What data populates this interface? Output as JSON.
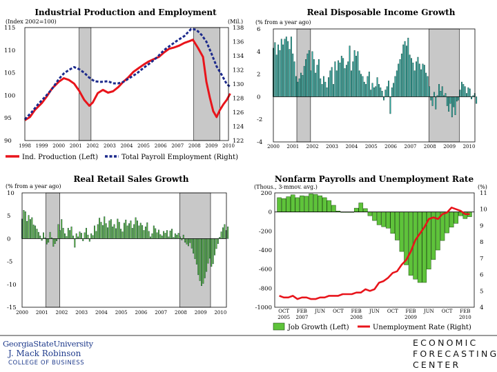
{
  "chart_data": [
    {
      "type": "line",
      "title": "Industrial Production and Employment",
      "ylabel_left": "(Index 2002=100)",
      "ylabel_right": "(Mil.)",
      "yticks_left": [
        "115",
        "110",
        "105",
        "100",
        "95",
        "90"
      ],
      "yticks_right": [
        "138",
        "136",
        "134",
        "132",
        "130",
        "128",
        "126",
        "124",
        "122"
      ],
      "ylim_left": [
        90,
        115
      ],
      "ylim_right": [
        122,
        138
      ],
      "xticks": [
        "1998",
        "1999",
        "2000",
        "2001",
        "2002",
        "2003",
        "2004",
        "2005",
        "2006",
        "2007",
        "2008",
        "2009",
        "2010"
      ],
      "xlim": [
        1998,
        2010
      ],
      "recessions": [
        [
          2001.2,
          2001.9
        ],
        [
          2007.95,
          2009.5
        ]
      ],
      "legend": [
        "Ind. Production (Left)",
        "Total Payroll Employment (Right)"
      ],
      "series": [
        {
          "name": "Ind. Production (Left)",
          "axis": "left",
          "color": "#e8141b",
          "x": [
            1998.0,
            1998.3,
            1998.6,
            1999.0,
            1999.3,
            1999.6,
            2000.0,
            2000.3,
            2000.6,
            2000.9,
            2001.2,
            2001.5,
            2001.8,
            2002.0,
            2002.3,
            2002.6,
            2002.9,
            2003.2,
            2003.5,
            2003.8,
            2004.1,
            2004.4,
            2004.7,
            2005.0,
            2005.3,
            2005.6,
            2005.9,
            2006.2,
            2006.5,
            2006.8,
            2007.1,
            2007.4,
            2007.7,
            2007.9,
            2008.2,
            2008.5,
            2008.7,
            2008.9,
            2009.1,
            2009.3,
            2009.5,
            2009.7,
            2009.9,
            2010.1
          ],
          "y": [
            94.5,
            95.2,
            96.8,
            98.3,
            99.8,
            101.5,
            103.0,
            103.8,
            103.4,
            102.6,
            101.0,
            99.0,
            97.7,
            98.4,
            100.5,
            101.2,
            100.6,
            100.9,
            101.8,
            103.0,
            104.0,
            105.2,
            106.0,
            106.8,
            107.5,
            108.0,
            108.5,
            109.5,
            110.3,
            110.6,
            111.0,
            111.6,
            112.0,
            112.3,
            110.5,
            108.5,
            103.0,
            99.5,
            96.5,
            95.2,
            96.8,
            98.0,
            99.0,
            100.4
          ]
        },
        {
          "name": "Total Payroll Employment (Right)",
          "axis": "right",
          "color": "#1c2a8c",
          "x": [
            1998.0,
            1998.4,
            1998.8,
            1999.2,
            1999.6,
            2000.0,
            2000.3,
            2000.6,
            2000.9,
            2001.2,
            2001.5,
            2001.8,
            2002.1,
            2002.5,
            2002.9,
            2003.2,
            2003.5,
            2003.8,
            2004.2,
            2004.6,
            2005.0,
            2005.4,
            2005.8,
            2006.2,
            2006.6,
            2007.0,
            2007.4,
            2007.8,
            2008.1,
            2008.4,
            2008.7,
            2009.0,
            2009.3,
            2009.6,
            2009.9,
            2010.1
          ],
          "y": [
            125.0,
            126.0,
            127.2,
            128.2,
            129.3,
            130.7,
            131.5,
            132.0,
            132.4,
            132.1,
            131.6,
            130.9,
            130.4,
            130.3,
            130.4,
            130.1,
            130.1,
            130.3,
            130.9,
            131.5,
            132.3,
            133.0,
            133.8,
            134.8,
            135.5,
            136.2,
            136.8,
            137.8,
            137.7,
            137.0,
            136.0,
            134.3,
            132.5,
            131.3,
            130.0,
            129.6
          ]
        }
      ]
    },
    {
      "type": "bar",
      "title": "Real Disposable Income Growth",
      "ylabel": "(% from a year ago)",
      "yticks": [
        "6",
        "4",
        "2",
        "0",
        "-2",
        "-4"
      ],
      "ylim": [
        -4,
        6
      ],
      "xticks": [
        "2000",
        "2001",
        "2002",
        "2003",
        "2004",
        "2005",
        "2006",
        "2007",
        "2008",
        "2009",
        "2010"
      ],
      "xlim": [
        2000,
        2010.3
      ],
      "recessions": [
        [
          2001.2,
          2001.9
        ],
        [
          2007.95,
          2009.5
        ]
      ],
      "series": [
        {
          "name": "Real Disposable Income Growth",
          "color": "#2fb4aa",
          "start": 2000.0,
          "step": 0.083,
          "values": [
            4.3,
            4.8,
            3.7,
            4.6,
            4.1,
            5.1,
            4.6,
            5.1,
            5.3,
            4.9,
            4.2,
            5.3,
            3.8,
            3.1,
            1.8,
            1.3,
            1.6,
            2.1,
            1.9,
            2.7,
            3.3,
            3.8,
            4.1,
            2.3,
            4.0,
            3.3,
            2.1,
            2.8,
            3.3,
            1.6,
            1.1,
            1.8,
            1.3,
            0.8,
            1.7,
            2.3,
            2.6,
            1.1,
            3.1,
            2.3,
            3.2,
            3.0,
            3.6,
            3.4,
            2.5,
            2.8,
            3.1,
            4.5,
            2.3,
            3.1,
            4.1,
            3.6,
            4.0,
            2.3,
            2.0,
            1.8,
            1.3,
            1.1,
            1.8,
            2.2,
            0.6,
            1.2,
            0.8,
            0.9,
            1.7,
            1.1,
            0.8,
            0.5,
            -0.3,
            0.6,
            0.9,
            1.4,
            -1.5,
            0.8,
            1.2,
            1.8,
            2.3,
            2.9,
            3.3,
            3.8,
            4.6,
            4.9,
            4.5,
            5.2,
            3.7,
            3.4,
            3.0,
            2.3,
            3.1,
            3.5,
            2.9,
            2.4,
            2.9,
            2.8,
            2.1,
            1.8,
            0.9,
            -0.3,
            -0.8,
            0.4,
            -1.1,
            0.1,
            1.1,
            0.5,
            0.9,
            0.1,
            0.3,
            -0.8,
            -1.3,
            -0.6,
            -1.8,
            -0.9,
            -1.6,
            -0.4,
            -0.3,
            0.6,
            1.3,
            1.1,
            0.9,
            0.3,
            0.8,
            0.7,
            -0.2,
            0.1,
            0.3,
            -0.6
          ]
        }
      ]
    },
    {
      "type": "bar",
      "title": "Real Retail Sales Growth",
      "ylabel": "(% from a year ago)",
      "yticks": [
        "10",
        "5",
        "0",
        "-5",
        "-10",
        "-15"
      ],
      "ylim": [
        -15,
        10
      ],
      "xticks": [
        "2000",
        "2001",
        "2002",
        "2003",
        "2004",
        "2005",
        "2006",
        "2007",
        "2008",
        "2009",
        "2010"
      ],
      "xlim": [
        2000,
        2010.3
      ],
      "recessions": [
        [
          2001.2,
          2001.9
        ],
        [
          2007.95,
          2009.5
        ]
      ],
      "series": [
        {
          "name": "Real Retail Sales Growth",
          "color": "#5ec33a",
          "start": 2000.0,
          "step": 0.083,
          "values": [
            4.3,
            6.2,
            5.9,
            3.8,
            5.1,
            4.2,
            4.6,
            3.0,
            2.8,
            2.1,
            1.4,
            0.6,
            -0.4,
            1.3,
            0.2,
            -1.2,
            -0.8,
            1.4,
            0.2,
            -1.7,
            -1.1,
            -0.5,
            3.1,
            1.8,
            4.2,
            2.3,
            1.1,
            0.5,
            2.3,
            1.8,
            2.6,
            0.6,
            -1.9,
            1.1,
            0.4,
            1.5,
            1.2,
            -0.5,
            1.3,
            2.3,
            0.8,
            -0.6,
            1.1,
            0.7,
            2.8,
            1.6,
            3.1,
            4.5,
            3.6,
            2.9,
            4.8,
            3.3,
            2.4,
            3.9,
            4.2,
            2.6,
            3.1,
            2.2,
            4.3,
            3.6,
            2.1,
            1.5,
            3.4,
            4.1,
            2.8,
            3.3,
            3.9,
            2.3,
            3.1,
            4.6,
            3.9,
            2.8,
            3.4,
            2.9,
            1.8,
            2.6,
            3.5,
            1.6,
            0.4,
            1.1,
            2.8,
            2.2,
            1.3,
            1.9,
            0.9,
            0.6,
            1.6,
            1.2,
            1.8,
            0.4,
            1.7,
            2.1,
            0.3,
            1.1,
            0.8,
            1.2,
            0.4,
            -0.3,
            0.8,
            -0.8,
            -1.2,
            -1.6,
            -0.9,
            -2.1,
            -3.2,
            -4.4,
            -5.6,
            -7.9,
            -9.2,
            -10.3,
            -9.8,
            -8.6,
            -7.2,
            -5.4,
            -4.3,
            -6.1,
            -5.5,
            -3.6,
            -2.2,
            -1.1,
            0.3,
            1.5,
            2.4,
            3.1,
            1.8,
            2.6
          ]
        }
      ]
    },
    {
      "type": "bar+line",
      "title": "Nonfarm Payrolls and Unemployment Rate",
      "ylabel_left": "(Thous., 3-mmov. avg.)",
      "ylabel_right": "(%)",
      "yticks_left": [
        "200",
        "0",
        "-200",
        "-400",
        "-600",
        "-800",
        "-1000"
      ],
      "yticks_right": [
        "11",
        "10",
        "9",
        "8",
        "7",
        "6",
        "5",
        "4"
      ],
      "ylim_left": [
        -1000,
        200
      ],
      "ylim_right": [
        4,
        11
      ],
      "xlabels": [
        {
          "x": 1,
          "top": "OCT",
          "bottom": "2005"
        },
        {
          "x": 5,
          "top": "FEB",
          "bottom": "2007"
        },
        {
          "x": 9,
          "top": "JUN",
          "bottom": ""
        },
        {
          "x": 13,
          "top": "OCT",
          "bottom": ""
        },
        {
          "x": 17,
          "top": "FEB",
          "bottom": "2008"
        },
        {
          "x": 21,
          "top": "JUN",
          "bottom": ""
        },
        {
          "x": 25,
          "top": "OCT",
          "bottom": ""
        },
        {
          "x": 29,
          "top": "FEB",
          "bottom": "2009"
        },
        {
          "x": 33,
          "top": "JUN",
          "bottom": ""
        },
        {
          "x": 37,
          "top": "OCT",
          "bottom": ""
        },
        {
          "x": 41,
          "top": "FEB",
          "bottom": "2010"
        }
      ],
      "xlim": [
        -1,
        43
      ],
      "legend": [
        "Job Growth (Left)",
        "Unemployment Rate (Right)"
      ],
      "series": [
        {
          "name": "Job Growth (Left)",
          "axis": "left",
          "color": "#5ec33a",
          "values": [
            150,
            140,
            160,
            180,
            150,
            170,
            165,
            190,
            185,
            170,
            150,
            120,
            70,
            10,
            -5,
            -5,
            -5,
            40,
            95,
            35,
            -40,
            -90,
            -135,
            -155,
            -170,
            -225,
            -295,
            -415,
            -555,
            -665,
            -705,
            -740,
            -740,
            -600,
            -500,
            -400,
            -300,
            -220,
            -160,
            -120,
            -40,
            -70,
            -50
          ]
        },
        {
          "name": "Unemployment Rate (Right)",
          "axis": "right",
          "color": "#e8141b",
          "values": [
            4.7,
            4.6,
            4.6,
            4.7,
            4.5,
            4.6,
            4.6,
            4.5,
            4.5,
            4.6,
            4.6,
            4.7,
            4.7,
            4.7,
            4.8,
            4.8,
            4.8,
            4.9,
            4.9,
            5.1,
            5.0,
            5.1,
            5.5,
            5.6,
            5.8,
            6.1,
            6.2,
            6.6,
            6.9,
            7.4,
            8.1,
            8.5,
            8.9,
            9.4,
            9.5,
            9.4,
            9.7,
            9.8,
            10.1,
            10.0,
            9.9,
            9.7,
            9.7
          ]
        }
      ]
    }
  ],
  "footer": {
    "logo_line1": "GeorgiaStateUniversity",
    "logo_line2": "J. Mack Robinson",
    "logo_line3": "COLLEGE OF BUSINESS",
    "center_line1": "ECONOMIC",
    "center_line2": "FORECASTING",
    "center_line3": "CENTER"
  }
}
